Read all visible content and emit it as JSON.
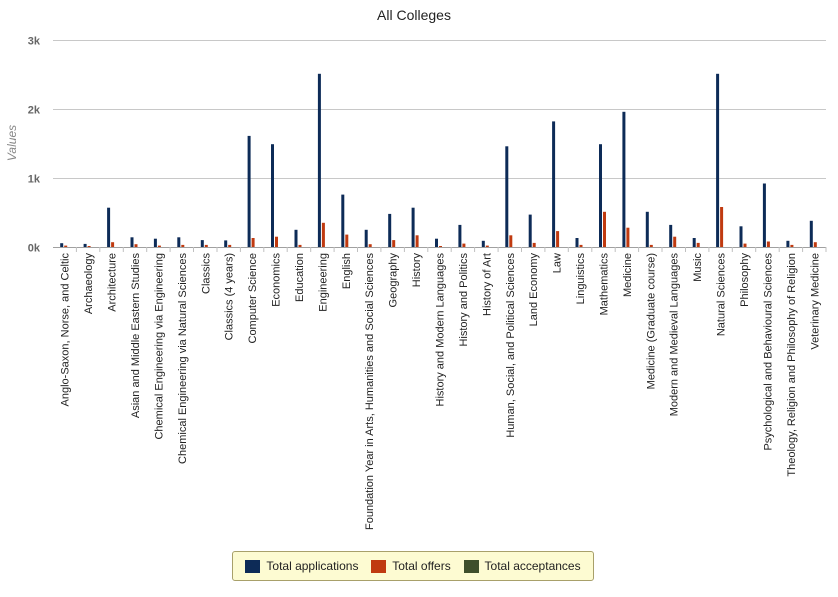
{
  "chart_data": {
    "type": "bar",
    "title": "All Colleges",
    "ylabel": "Values",
    "xlabel": "",
    "ylim": [
      0,
      3000
    ],
    "yticks": [
      0,
      1000,
      2000,
      3000
    ],
    "ytick_labels": [
      "0k",
      "1k",
      "2k",
      "3k"
    ],
    "grid": true,
    "legend_position": "bottom",
    "categories": [
      "Anglo-Saxon, Norse, and Celtic",
      "Archaeology",
      "Architecture",
      "Asian and Middle Eastern Studies",
      "Chemical Engineering via Engineering",
      "Chemical Engineering via Natural Sciences",
      "Classics",
      "Classics (4 years)",
      "Computer Science",
      "Economics",
      "Education",
      "Engineering",
      "English",
      "Foundation Year in Arts, Humanities and Social Sciences",
      "Geography",
      "History",
      "History and Modern Languages",
      "History and Politics",
      "History of Art",
      "Human, Social, and Political Sciences",
      "Land Economy",
      "Law",
      "Linguistics",
      "Mathematics",
      "Medicine",
      "Medicine (Graduate course)",
      "Modern and Medieval Languages",
      "Music",
      "Natural Sciences",
      "Philosophy",
      "Psychological and Behavioural Sciences",
      "Theology, Religion and Philosophy of Religion",
      "Veterinary Medicine"
    ],
    "series": [
      {
        "name": "Total applications",
        "color": "#0d2b57",
        "values": [
          55,
          45,
          570,
          140,
          120,
          140,
          100,
          95,
          1610,
          1490,
          250,
          2510,
          760,
          250,
          480,
          570,
          120,
          320,
          90,
          1460,
          470,
          1820,
          130,
          1490,
          1960,
          510,
          320,
          130,
          2510,
          300,
          920,
          90,
          380
        ]
      },
      {
        "name": "Total offers",
        "color": "#c03a10",
        "values": [
          20,
          15,
          70,
          40,
          20,
          30,
          30,
          30,
          130,
          150,
          30,
          350,
          180,
          40,
          100,
          170,
          15,
          50,
          20,
          170,
          60,
          230,
          30,
          510,
          280,
          30,
          150,
          60,
          580,
          50,
          80,
          30,
          70
        ]
      },
      {
        "name": "Total acceptances",
        "color": "#3f4f2c",
        "values": [
          0,
          0,
          0,
          0,
          0,
          0,
          0,
          0,
          0,
          0,
          0,
          0,
          0,
          0,
          0,
          0,
          0,
          0,
          0,
          0,
          0,
          0,
          0,
          0,
          0,
          0,
          0,
          0,
          0,
          0,
          0,
          0,
          0
        ]
      }
    ]
  }
}
